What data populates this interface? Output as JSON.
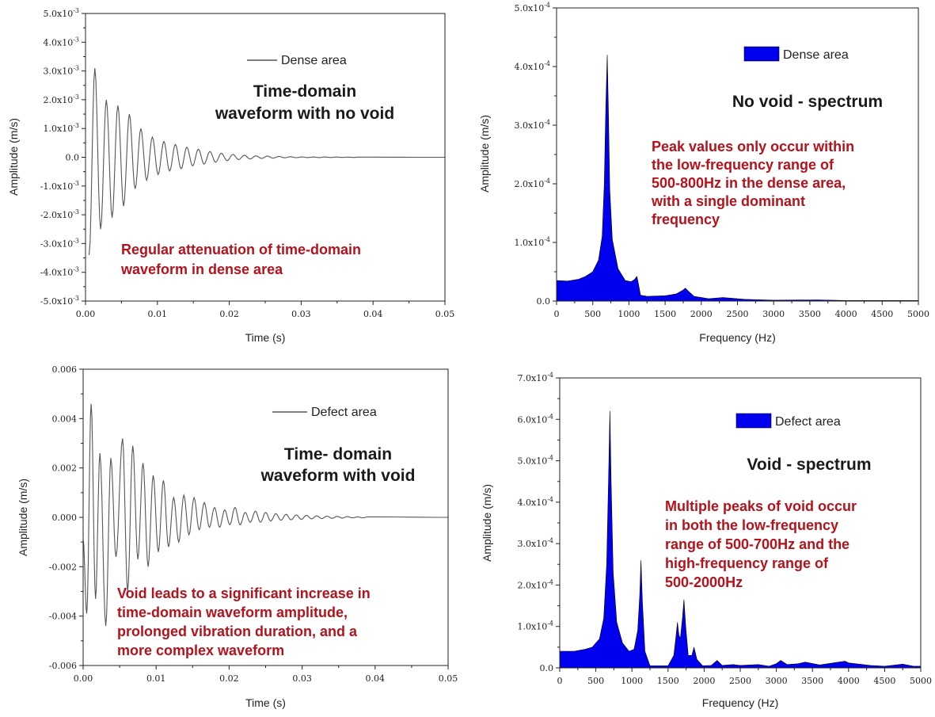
{
  "colors": {
    "axis": "#222222",
    "line": "#555555",
    "fill": "#0000ee",
    "note": "#b5121b"
  },
  "chart_data": [
    {
      "id": "time-novoid",
      "type": "line",
      "legend": "Dense area",
      "xlabel": "Time (s)",
      "ylabel": "Amplitude (m/s)",
      "xlim": [
        0,
        0.05
      ],
      "ylim": [
        -0.005,
        0.005
      ],
      "xticks": [
        "0.00",
        "0.01",
        "0.02",
        "0.03",
        "0.04",
        "0.05"
      ],
      "yticks": [
        "-5.0x10-3",
        "-4.0x10-3",
        "-3.0x10-3",
        "-2.0x10-3",
        "-1.0x10-3",
        "0.0",
        "1.0x10-3",
        "2.0x10-3",
        "3.0x10-3",
        "4.0x10-3",
        "5.0x10-3"
      ],
      "yticks_base": [
        "-5.0x10",
        "-4.0x10",
        "-3.0x10",
        "-2.0x10",
        "-1.0x10",
        "0.0",
        "1.0x10",
        "2.0x10",
        "3.0x10",
        "4.0x10",
        "5.0x10"
      ],
      "yticks_exp": [
        "-3",
        "-3",
        "-3",
        "-3",
        "-3",
        "",
        "-3",
        "-3",
        "-3",
        "-3",
        "-3"
      ],
      "title_lines": [
        "Time-domain",
        "waveform with no void"
      ],
      "note_lines": [
        "Regular attenuation of time-domain",
        "waveform in dense area"
      ],
      "peaks": [
        {
          "x": 0.0005,
          "y": -0.0034
        },
        {
          "x": 0.0013,
          "y": 0.0031
        },
        {
          "x": 0.0021,
          "y": -0.0025
        },
        {
          "x": 0.0029,
          "y": 0.002
        },
        {
          "x": 0.0037,
          "y": -0.0021
        },
        {
          "x": 0.0045,
          "y": 0.0018
        },
        {
          "x": 0.0053,
          "y": -0.0017
        },
        {
          "x": 0.0061,
          "y": 0.0015
        },
        {
          "x": 0.0069,
          "y": -0.0011
        },
        {
          "x": 0.0077,
          "y": 0.001
        },
        {
          "x": 0.0085,
          "y": -0.0008
        },
        {
          "x": 0.0093,
          "y": 0.0007
        },
        {
          "x": 0.0101,
          "y": -0.0006
        },
        {
          "x": 0.0109,
          "y": 0.00055
        },
        {
          "x": 0.0117,
          "y": -0.00048
        },
        {
          "x": 0.0125,
          "y": 0.00045
        },
        {
          "x": 0.0133,
          "y": -0.0004
        },
        {
          "x": 0.0141,
          "y": 0.00035
        },
        {
          "x": 0.0149,
          "y": -0.0003
        },
        {
          "x": 0.0157,
          "y": 0.00028
        },
        {
          "x": 0.0165,
          "y": -0.00024
        },
        {
          "x": 0.0173,
          "y": 0.0002
        },
        {
          "x": 0.0181,
          "y": -0.00017
        },
        {
          "x": 0.0189,
          "y": 0.00014
        },
        {
          "x": 0.0197,
          "y": -0.00012
        },
        {
          "x": 0.0205,
          "y": 0.0001
        },
        {
          "x": 0.0213,
          "y": -8e-05
        },
        {
          "x": 0.0221,
          "y": 7e-05
        },
        {
          "x": 0.0229,
          "y": -6e-05
        },
        {
          "x": 0.0237,
          "y": 5e-05
        },
        {
          "x": 0.0245,
          "y": -4e-05
        },
        {
          "x": 0.0253,
          "y": 4e-05
        },
        {
          "x": 0.0261,
          "y": -3e-05
        },
        {
          "x": 0.0269,
          "y": 3e-05
        },
        {
          "x": 0.0277,
          "y": -2e-05
        },
        {
          "x": 0.0285,
          "y": 2e-05
        },
        {
          "x": 0.0293,
          "y": -1.5e-05
        },
        {
          "x": 0.0301,
          "y": 1.2e-05
        },
        {
          "x": 0.0309,
          "y": -1e-05
        },
        {
          "x": 0.0317,
          "y": 1e-05
        },
        {
          "x": 0.0325,
          "y": -1e-05
        },
        {
          "x": 0.0333,
          "y": 1e-05
        },
        {
          "x": 0.0341,
          "y": -8e-06
        },
        {
          "x": 0.0349,
          "y": 8e-06
        },
        {
          "x": 0.0357,
          "y": -6e-06
        },
        {
          "x": 0.0365,
          "y": 6e-06
        },
        {
          "x": 0.0373,
          "y": -5e-06
        },
        {
          "x": 0.0381,
          "y": 5e-06
        },
        {
          "x": 0.05,
          "y": 0
        }
      ]
    },
    {
      "id": "spec-novoid",
      "type": "area",
      "legend": "Dense area",
      "xlabel": "Frequency (Hz)",
      "ylabel": "Amplitude (m/s)",
      "xlim": [
        0,
        5000
      ],
      "ylim": [
        0,
        0.0005
      ],
      "xticks": [
        "0",
        "500",
        "1000",
        "1500",
        "2000",
        "2500",
        "3000",
        "3500",
        "4000",
        "4500",
        "5000"
      ],
      "yticks": [
        "0.0",
        "1.0x10-4",
        "2.0x10-4",
        "3.0x10-4",
        "4.0x10-4",
        "5.0x10-4"
      ],
      "yticks_base": [
        "0.0",
        "1.0x10",
        "2.0x10",
        "3.0x10",
        "4.0x10",
        "5.0x10"
      ],
      "yticks_exp": [
        "",
        "-4",
        "-4",
        "-4",
        "-4",
        "-4"
      ],
      "title_lines": [
        "No void - spectrum"
      ],
      "note_lines": [
        "Peak values only occur within",
        "the low-frequency range of",
        "500-800Hz in the dense area,",
        "with a single dominant",
        "frequency"
      ],
      "points": [
        [
          0,
          3.5e-05
        ],
        [
          150,
          3.4e-05
        ],
        [
          300,
          3.7e-05
        ],
        [
          400,
          4.2e-05
        ],
        [
          500,
          5e-05
        ],
        [
          580,
          7e-05
        ],
        [
          630,
          0.00011
        ],
        [
          660,
          0.0002
        ],
        [
          680,
          0.00033
        ],
        [
          700,
          0.00042
        ],
        [
          715,
          0.00033
        ],
        [
          735,
          0.00019
        ],
        [
          770,
          0.000105
        ],
        [
          850,
          5.5e-05
        ],
        [
          950,
          3.5e-05
        ],
        [
          1030,
          3.3e-05
        ],
        [
          1080,
          3.7e-05
        ],
        [
          1110,
          4.2e-05
        ],
        [
          1130,
          3e-05
        ],
        [
          1160,
          1e-05
        ],
        [
          1250,
          8e-06
        ],
        [
          1500,
          9e-06
        ],
        [
          1650,
          1.2e-05
        ],
        [
          1740,
          1.8e-05
        ],
        [
          1780,
          2.2e-05
        ],
        [
          1820,
          1.7e-05
        ],
        [
          1900,
          8e-06
        ],
        [
          2100,
          4e-06
        ],
        [
          2300,
          6e-06
        ],
        [
          2400,
          5e-06
        ],
        [
          2600,
          3e-06
        ],
        [
          3000,
          1.5e-06
        ],
        [
          3600,
          2e-06
        ],
        [
          4000,
          1e-06
        ],
        [
          4500,
          1e-06
        ],
        [
          5000,
          1e-06
        ]
      ]
    },
    {
      "id": "time-void",
      "type": "line",
      "legend": "Defect area",
      "xlabel": "Time (s)",
      "ylabel": "Amplitude (m/s)",
      "xlim": [
        0,
        0.05
      ],
      "ylim": [
        -0.006,
        0.006
      ],
      "xticks": [
        "0.00",
        "0.01",
        "0.02",
        "0.03",
        "0.04",
        "0.05"
      ],
      "yticks": [
        "-0.006",
        "-0.004",
        "-0.002",
        "0.000",
        "0.002",
        "0.004",
        "0.006"
      ],
      "yticks_base": [
        "-0.006",
        "-0.004",
        "-0.002",
        "0.000",
        "0.002",
        "0.004",
        "0.006"
      ],
      "yticks_exp": [
        "",
        "",
        "",
        "",
        "",
        "",
        ""
      ],
      "title_lines": [
        "Time- domain",
        "waveform with void"
      ],
      "note_lines": [
        "Void leads to a significant increase in",
        "time-domain waveform amplitude,",
        "prolonged vibration duration, and a",
        "more complex waveform"
      ],
      "peaks": [
        {
          "x": 0.0,
          "y": -0.0009
        },
        {
          "x": 0.0005,
          "y": -0.0039
        },
        {
          "x": 0.0011,
          "y": 0.0046
        },
        {
          "x": 0.0017,
          "y": -0.0033
        },
        {
          "x": 0.0023,
          "y": 0.0026
        },
        {
          "x": 0.0031,
          "y": -0.0044
        },
        {
          "x": 0.0038,
          "y": 0.0024
        },
        {
          "x": 0.0045,
          "y": -0.0016
        },
        {
          "x": 0.0054,
          "y": 0.0032
        },
        {
          "x": 0.0061,
          "y": -0.003
        },
        {
          "x": 0.0068,
          "y": 0.0029
        },
        {
          "x": 0.0075,
          "y": -0.0017
        },
        {
          "x": 0.0082,
          "y": 0.0022
        },
        {
          "x": 0.0089,
          "y": -0.002
        },
        {
          "x": 0.0096,
          "y": 0.0017
        },
        {
          "x": 0.0103,
          "y": -0.0014
        },
        {
          "x": 0.011,
          "y": 0.0015
        },
        {
          "x": 0.0117,
          "y": -0.0012
        },
        {
          "x": 0.0124,
          "y": 0.0008
        },
        {
          "x": 0.0131,
          "y": -0.001
        },
        {
          "x": 0.0138,
          "y": 0.0009
        },
        {
          "x": 0.0145,
          "y": -0.0007
        },
        {
          "x": 0.0152,
          "y": 0.0008
        },
        {
          "x": 0.0159,
          "y": -0.0005
        },
        {
          "x": 0.0166,
          "y": 0.0006
        },
        {
          "x": 0.0173,
          "y": -0.0004
        },
        {
          "x": 0.018,
          "y": 0.0004
        },
        {
          "x": 0.0187,
          "y": -0.0004
        },
        {
          "x": 0.0194,
          "y": 0.0003
        },
        {
          "x": 0.0201,
          "y": -0.0003
        },
        {
          "x": 0.0208,
          "y": 0.0004
        },
        {
          "x": 0.0215,
          "y": -0.0003
        },
        {
          "x": 0.0222,
          "y": 0.0002
        },
        {
          "x": 0.0229,
          "y": -0.0002
        },
        {
          "x": 0.0236,
          "y": 0.00025
        },
        {
          "x": 0.0243,
          "y": -0.0002
        },
        {
          "x": 0.025,
          "y": 0.0002
        },
        {
          "x": 0.0257,
          "y": -0.00015
        },
        {
          "x": 0.0264,
          "y": 0.00015
        },
        {
          "x": 0.0271,
          "y": -0.00012
        },
        {
          "x": 0.0278,
          "y": 0.00012
        },
        {
          "x": 0.0285,
          "y": -0.0001
        },
        {
          "x": 0.0292,
          "y": 0.0001
        },
        {
          "x": 0.0299,
          "y": -8e-05
        },
        {
          "x": 0.0306,
          "y": 8e-05
        },
        {
          "x": 0.0313,
          "y": -6e-05
        },
        {
          "x": 0.032,
          "y": 6e-05
        },
        {
          "x": 0.0327,
          "y": -5e-05
        },
        {
          "x": 0.0334,
          "y": 5e-05
        },
        {
          "x": 0.0341,
          "y": -4e-05
        },
        {
          "x": 0.0348,
          "y": 4e-05
        },
        {
          "x": 0.0355,
          "y": -3e-05
        },
        {
          "x": 0.0362,
          "y": 3e-05
        },
        {
          "x": 0.0369,
          "y": -2e-05
        },
        {
          "x": 0.0376,
          "y": 2e-05
        },
        {
          "x": 0.0383,
          "y": -2e-05
        },
        {
          "x": 0.039,
          "y": 2e-05
        },
        {
          "x": 0.05,
          "y": 0
        }
      ]
    },
    {
      "id": "spec-void",
      "type": "area",
      "legend": "Defect area",
      "xlabel": "Frequency (Hz)",
      "ylabel": "Amplitude (m/s)",
      "xlim": [
        0,
        5000
      ],
      "ylim": [
        0,
        0.0007
      ],
      "xticks": [
        "0",
        "500",
        "1000",
        "1500",
        "2000",
        "2500",
        "3000",
        "3500",
        "4000",
        "4500",
        "5000"
      ],
      "yticks": [
        "0.0",
        "1.0x10-4",
        "2.0x10-4",
        "3.0x10-4",
        "4.0x10-4",
        "5.0x10-4",
        "6.0x10-4",
        "7.0x10-4"
      ],
      "yticks_base": [
        "0.0",
        "1.0x10",
        "2.0x10",
        "3.0x10",
        "4.0x10",
        "5.0x10",
        "6.0x10",
        "7.0x10"
      ],
      "yticks_exp": [
        "",
        "-4",
        "-4",
        "-4",
        "-4",
        "-4",
        "-4",
        "-4"
      ],
      "title_lines": [
        "Void - spectrum"
      ],
      "note_lines": [
        "Multiple peaks of void occur",
        "in both the low-frequency",
        "range of 500-700Hz and the",
        "high-frequency range of",
        "500-2000Hz"
      ],
      "points": [
        [
          0,
          4e-05
        ],
        [
          200,
          4e-05
        ],
        [
          350,
          4.5e-05
        ],
        [
          450,
          5e-05
        ],
        [
          550,
          7e-05
        ],
        [
          610,
          0.00012
        ],
        [
          650,
          0.00025
        ],
        [
          675,
          0.00045
        ],
        [
          695,
          0.00062
        ],
        [
          712,
          0.00045
        ],
        [
          740,
          0.00023
        ],
        [
          790,
          0.00011
        ],
        [
          870,
          6e-05
        ],
        [
          960,
          4e-05
        ],
        [
          1030,
          4.5e-05
        ],
        [
          1080,
          9e-05
        ],
        [
          1110,
          0.00018
        ],
        [
          1125,
          0.00026
        ],
        [
          1145,
          0.00016
        ],
        [
          1180,
          4e-05
        ],
        [
          1250,
          5e-06
        ],
        [
          1500,
          5e-06
        ],
        [
          1580,
          3e-05
        ],
        [
          1610,
          7.5e-05
        ],
        [
          1630,
          0.00011
        ],
        [
          1650,
          8e-05
        ],
        [
          1670,
          7e-05
        ],
        [
          1700,
          0.00012
        ],
        [
          1720,
          0.000165
        ],
        [
          1745,
          0.0001
        ],
        [
          1780,
          3e-05
        ],
        [
          1830,
          3e-05
        ],
        [
          1860,
          5e-05
        ],
        [
          1900,
          2e-05
        ],
        [
          1980,
          5e-06
        ],
        [
          2100,
          6e-06
        ],
        [
          2180,
          1.8e-05
        ],
        [
          2250,
          6e-06
        ],
        [
          2400,
          8e-06
        ],
        [
          2500,
          6e-06
        ],
        [
          2750,
          8e-06
        ],
        [
          2900,
          4e-06
        ],
        [
          3000,
          1e-05
        ],
        [
          3060,
          1.8e-05
        ],
        [
          3150,
          8e-06
        ],
        [
          3300,
          1e-05
        ],
        [
          3400,
          1.4e-05
        ],
        [
          3600,
          7e-06
        ],
        [
          3950,
          1.6e-05
        ],
        [
          4000,
          1.2e-05
        ],
        [
          4300,
          6e-06
        ],
        [
          4500,
          4e-06
        ],
        [
          4750,
          9e-06
        ],
        [
          4900,
          4e-06
        ],
        [
          5000,
          4e-06
        ]
      ]
    }
  ]
}
